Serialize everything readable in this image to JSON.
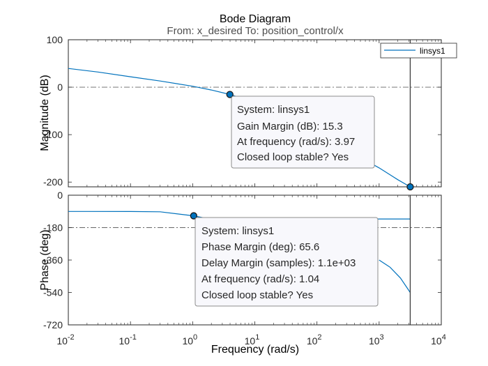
{
  "chart_data": {
    "type": "line",
    "title": "Bode Diagram",
    "subtitle": "From: x_desired  To: position_control/x",
    "xlabel": "Frequency  (rad/s)",
    "xscale": "log",
    "xlim": [
      0.01,
      10000
    ],
    "x_ticks": [
      {
        "base": "10",
        "exp": "-2"
      },
      {
        "base": "10",
        "exp": "-1"
      },
      {
        "base": "10",
        "exp": "0"
      },
      {
        "base": "10",
        "exp": "1"
      },
      {
        "base": "10",
        "exp": "2"
      },
      {
        "base": "10",
        "exp": "3"
      },
      {
        "base": "10",
        "exp": "4"
      }
    ],
    "legend": {
      "position": "top-right",
      "entries": [
        "linsys1"
      ]
    },
    "series_color": "#0072bd",
    "stability_line_freq": 3162,
    "magnitude": {
      "ylabel": "Magnitude (dB)",
      "ylim": [
        -210,
        100
      ],
      "ticks": [
        "100",
        "0",
        "-100",
        "-200"
      ],
      "ref_line": 0,
      "points": [
        [
          0.01,
          39.5
        ],
        [
          0.03,
          32
        ],
        [
          0.1,
          22
        ],
        [
          0.3,
          13
        ],
        [
          1,
          2
        ],
        [
          2,
          -6
        ],
        [
          3.97,
          -15.3
        ],
        [
          10,
          -32
        ],
        [
          30,
          -60
        ],
        [
          100,
          -98
        ],
        [
          300,
          -132
        ],
        [
          1000,
          -170
        ],
        [
          2000,
          -195
        ],
        [
          3162,
          -210
        ]
      ],
      "marker": {
        "x": 3.97,
        "y": -15.3
      },
      "end_marker": {
        "x": 3162,
        "y": -210
      },
      "datatip": [
        "System: linsys1",
        "Gain Margin (dB): 15.3",
        "At frequency (rad/s): 3.97",
        "Closed loop stable? Yes"
      ]
    },
    "phase": {
      "ylabel": "Phase (deg)",
      "ylim": [
        -720,
        0
      ],
      "ticks": [
        "0",
        "-180",
        "-360",
        "-540",
        "-720"
      ],
      "ref_line": -180,
      "points": [
        [
          0.01,
          -90
        ],
        [
          0.1,
          -90.5
        ],
        [
          0.3,
          -92
        ],
        [
          1.04,
          -114.4
        ],
        [
          1.5,
          -125
        ],
        [
          2,
          -132
        ],
        [
          3162,
          -132
        ]
      ],
      "droop": [
        [
          1000,
          -360
        ],
        [
          1500,
          -400
        ],
        [
          2200,
          -460
        ],
        [
          3162,
          -540
        ]
      ],
      "marker": {
        "x": 1.04,
        "y": -114.4
      },
      "datatip": [
        "System: linsys1",
        "Phase Margin (deg): 65.6",
        "Delay Margin (samples): 1.1e+03",
        "At frequency (rad/s): 1.04",
        "Closed loop stable? Yes"
      ]
    },
    "grid": false
  }
}
